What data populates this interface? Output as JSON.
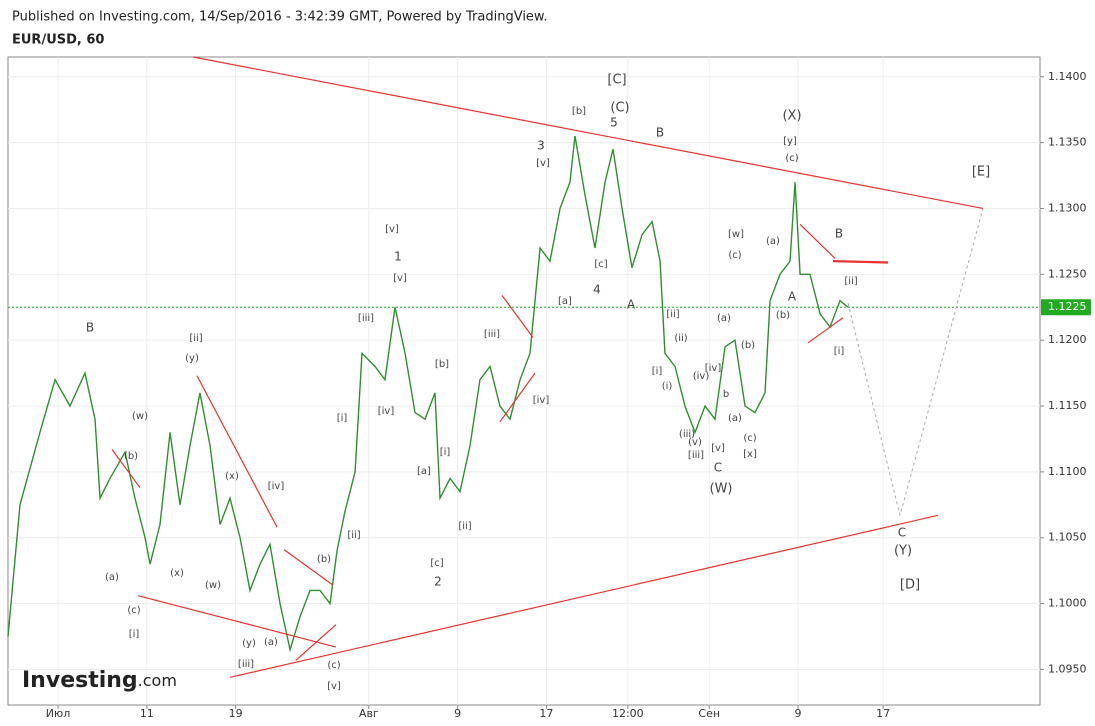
{
  "header": {
    "published": "Published on Investing.com, 14/Sep/2016 - 3:42:39 GMT, Powered by TradingView.",
    "symbol": "EUR/USD, 60"
  },
  "logo": {
    "brand": "Investing",
    "suffix": ".com"
  },
  "chart_data": {
    "type": "line",
    "grid": true,
    "xlim": [
      -3.38,
      66.35
    ],
    "ylim": [
      1.0923,
      1.1415
    ],
    "xticks": [
      {
        "value": 0,
        "label": "Июл"
      },
      {
        "value": 6,
        "label": "11"
      },
      {
        "value": 12,
        "label": "19"
      },
      {
        "value": 21,
        "label": "Авг"
      },
      {
        "value": 27,
        "label": "9"
      },
      {
        "value": 33,
        "label": "17"
      },
      {
        "value": 38.5,
        "label": "12:00"
      },
      {
        "value": 44,
        "label": "Сен"
      },
      {
        "value": 50,
        "label": "9"
      },
      {
        "value": 55.75,
        "label": "17"
      }
    ],
    "yticks": [
      {
        "value": 1.095,
        "label": "1.0950"
      },
      {
        "value": 1.1,
        "label": "1.1000"
      },
      {
        "value": 1.105,
        "label": "1.1050"
      },
      {
        "value": 1.11,
        "label": "1.1100"
      },
      {
        "value": 1.115,
        "label": "1.1150"
      },
      {
        "value": 1.12,
        "label": "1.1200"
      },
      {
        "value": 1.125,
        "label": "1.1250"
      },
      {
        "value": 1.13,
        "label": "1.1300"
      },
      {
        "value": 1.135,
        "label": "1.1350"
      },
      {
        "value": 1.14,
        "label": "1.1400"
      }
    ],
    "current_price": 1.1225,
    "series": [
      {
        "name": "EUR/USD",
        "color": "#2f8f2f",
        "x": [
          -3.38,
          -2.57,
          -1.22,
          -0.2,
          0.81,
          1.82,
          2.5,
          2.84,
          3.51,
          4.53,
          5.2,
          5.88,
          6.22,
          6.89,
          7.57,
          8.24,
          8.92,
          9.59,
          10.27,
          10.95,
          11.62,
          12.3,
          12.97,
          13.65,
          14.32,
          15,
          15.68,
          16.35,
          17.03,
          17.7,
          18.38,
          18.85,
          19.39,
          20.07,
          20.54,
          21.42,
          22.09,
          22.77,
          23.45,
          24.12,
          24.8,
          25.47,
          25.81,
          26.49,
          27.16,
          27.84,
          28.51,
          29.19,
          29.86,
          30.54,
          31.22,
          31.89,
          32.57,
          33.24,
          33.92,
          34.59,
          34.93,
          35.61,
          36.28,
          36.96,
          37.5,
          38.11,
          38.78,
          39.46,
          40.14,
          40.68,
          41.01,
          41.69,
          42.36,
          43.04,
          43.72,
          44.39,
          45.07,
          45.74,
          46.42,
          47.09,
          47.77,
          48.11,
          48.78,
          49.46,
          49.8,
          50.14,
          50.81,
          51.49,
          52.16,
          52.84,
          53.38
        ],
        "values": [
          1.0975,
          1.1075,
          1.113,
          1.117,
          1.115,
          1.1175,
          1.114,
          1.108,
          1.1095,
          1.1115,
          1.108,
          1.105,
          1.103,
          1.106,
          1.113,
          1.1075,
          1.112,
          1.116,
          1.112,
          1.106,
          1.108,
          1.105,
          1.101,
          1.103,
          1.1045,
          1.1,
          1.0965,
          1.099,
          1.101,
          1.101,
          1.1,
          1.104,
          1.107,
          1.11,
          1.119,
          1.118,
          1.117,
          1.1225,
          1.119,
          1.1145,
          1.114,
          1.116,
          1.108,
          1.1095,
          1.1085,
          1.112,
          1.117,
          1.118,
          1.115,
          1.114,
          1.117,
          1.119,
          1.127,
          1.126,
          1.13,
          1.132,
          1.1355,
          1.131,
          1.127,
          1.132,
          1.1345,
          1.13,
          1.1255,
          1.128,
          1.129,
          1.126,
          1.119,
          1.118,
          1.115,
          1.113,
          1.115,
          1.114,
          1.1195,
          1.12,
          1.115,
          1.1145,
          1.116,
          1.123,
          1.125,
          1.126,
          1.132,
          1.125,
          1.125,
          1.122,
          1.121,
          1.123,
          1.1225
        ]
      }
    ],
    "trendlines": [
      {
        "color": "#e8332e",
        "x": [
          9.12,
          62.5
        ],
        "values": [
          1.1415,
          1.13
        ]
      },
      {
        "color": "#e8332e",
        "x": [
          11.62,
          59.46
        ],
        "values": [
          1.0944,
          1.1067
        ]
      },
      {
        "color": "#e8332e",
        "x": [
          3.65,
          5.54
        ],
        "values": [
          1.1117,
          1.1088
        ]
      },
      {
        "color": "#e8332e",
        "x": [
          9.39,
          14.8
        ],
        "values": [
          1.1173,
          1.1058
        ]
      },
      {
        "color": "#e8332e",
        "x": [
          15.27,
          18.58
        ],
        "values": [
          1.1041,
          1.1014
        ]
      },
      {
        "color": "#e8332e",
        "x": [
          5.41,
          18.78
        ],
        "values": [
          1.1006,
          1.0967
        ]
      },
      {
        "color": "#e8332e",
        "x": [
          16.08,
          18.78
        ],
        "values": [
          1.0957,
          1.0984
        ]
      },
      {
        "color": "#e8332e",
        "x": [
          30,
          32.09
        ],
        "values": [
          1.1234,
          1.1202
        ]
      },
      {
        "color": "#e8332e",
        "x": [
          29.86,
          32.23
        ],
        "values": [
          1.1138,
          1.1175
        ]
      },
      {
        "color": "#e8332e",
        "x": [
          50.14,
          52.5
        ],
        "values": [
          1.1288,
          1.1262
        ]
      },
      {
        "color": "#e8332e",
        "x": [
          50.68,
          53.04
        ],
        "values": [
          1.1198,
          1.1217
        ]
      },
      {
        "color": "#e8332e",
        "x": [
          52.36,
          56.08
        ],
        "values": [
          1.126,
          1.1259
        ]
      }
    ],
    "projection": {
      "color": "#aaaaaa",
      "x": [
        53.38,
        56.89,
        62.5
      ],
      "values": [
        1.1228,
        1.1067,
        1.13
      ]
    },
    "annotations": [
      "[C]",
      "(C)",
      "5",
      "[b]",
      "3",
      "[v]",
      "B",
      "(X)",
      "[y]",
      "(c)",
      "[E]",
      "[w]",
      "(a)",
      "B",
      "(c)",
      "[ii]",
      "A",
      "(b)",
      "[i]",
      "[c]",
      "4",
      "[a]",
      "A",
      "[v]",
      "1",
      "[v]",
      "[iii]",
      "[ii]",
      "(ii)",
      "(a)",
      "(b)",
      "[iv]",
      "(iv)",
      "[i]",
      "(i)",
      "(iii)",
      "(v)",
      "[iii]",
      "[v]",
      "b",
      "(a)",
      "(c)",
      "[x]",
      "C",
      "(W)",
      "[iii]",
      "[iv]",
      "[b]",
      "[i]",
      "[a]",
      "[ii]",
      "[c]",
      "2",
      "[iv]",
      "[i]",
      "[ii]",
      "B",
      "[ii]",
      "(y)",
      "(w)",
      "(x)",
      "[iv]",
      "(b)",
      "(a)",
      "(x)",
      "(w)",
      "(c)",
      "[i]",
      "(b)",
      "(y)",
      "(a)",
      "[iii]",
      "(c)",
      "[v]",
      "C",
      "(Y)",
      "[D]"
    ]
  }
}
